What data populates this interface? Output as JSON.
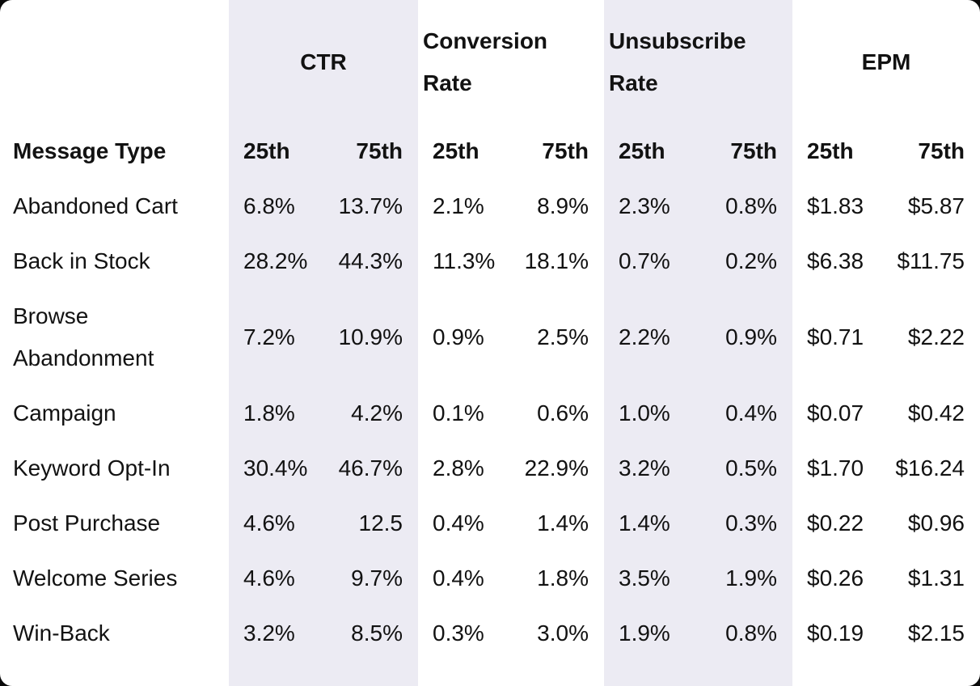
{
  "card": {
    "background": "#ffffff",
    "corner_backdrop_color": "#0a0a0a",
    "band_color": "#ECEBF3",
    "text_color": "#121212"
  },
  "table": {
    "row_header": "Message Type",
    "sub_headers": [
      "25th",
      "75th"
    ],
    "groups": [
      {
        "label": "CTR",
        "shaded": true
      },
      {
        "label": "Conversion Rate",
        "shaded": false
      },
      {
        "label": "Unsubscribe Rate",
        "shaded": true
      },
      {
        "label": "EPM",
        "shaded": false
      }
    ],
    "rows": [
      {
        "label": "Abandoned Cart",
        "values": [
          "6.8%",
          "13.7%",
          "2.1%",
          "8.9%",
          "2.3%",
          "0.8%",
          "$1.83",
          "$5.87"
        ]
      },
      {
        "label": "Back in Stock",
        "values": [
          "28.2%",
          "44.3%",
          "11.3%",
          "18.1%",
          "0.7%",
          "0.2%",
          "$6.38",
          "$11.75"
        ]
      },
      {
        "label": "Browse Abandonment",
        "values": [
          "7.2%",
          "10.9%",
          "0.9%",
          "2.5%",
          "2.2%",
          "0.9%",
          "$0.71",
          "$2.22"
        ]
      },
      {
        "label": "Campaign",
        "values": [
          "1.8%",
          "4.2%",
          "0.1%",
          "0.6%",
          "1.0%",
          "0.4%",
          "$0.07",
          "$0.42"
        ]
      },
      {
        "label": "Keyword Opt-In",
        "values": [
          "30.4%",
          "46.7%",
          "2.8%",
          "22.9%",
          "3.2%",
          "0.5%",
          "$1.70",
          "$16.24"
        ]
      },
      {
        "label": "Post Purchase",
        "values": [
          "4.6%",
          "12.5",
          "0.4%",
          "1.4%",
          "1.4%",
          "0.3%",
          "$0.22",
          "$0.96"
        ]
      },
      {
        "label": "Welcome Series",
        "values": [
          "4.6%",
          "9.7%",
          "0.4%",
          "1.8%",
          "3.5%",
          "1.9%",
          "$0.26",
          "$1.31"
        ]
      },
      {
        "label": "Win-Back",
        "values": [
          "3.2%",
          "8.5%",
          "0.3%",
          "3.0%",
          "1.9%",
          "0.8%",
          "$0.19",
          "$2.15"
        ]
      }
    ]
  },
  "chart_data": {
    "type": "table",
    "title": "",
    "column_groups": [
      "CTR",
      "Conversion Rate",
      "Unsubscribe Rate",
      "EPM"
    ],
    "columns": [
      "Message Type",
      "CTR 25th",
      "CTR 75th",
      "Conversion Rate 25th",
      "Conversion Rate 75th",
      "Unsubscribe Rate 25th",
      "Unsubscribe Rate 75th",
      "EPM 25th",
      "EPM 75th"
    ],
    "rows": [
      [
        "Abandoned Cart",
        "6.8%",
        "13.7%",
        "2.1%",
        "8.9%",
        "2.3%",
        "0.8%",
        "$1.83",
        "$5.87"
      ],
      [
        "Back in Stock",
        "28.2%",
        "44.3%",
        "11.3%",
        "18.1%",
        "0.7%",
        "0.2%",
        "$6.38",
        "$11.75"
      ],
      [
        "Browse Abandonment",
        "7.2%",
        "10.9%",
        "0.9%",
        "2.5%",
        "2.2%",
        "0.9%",
        "$0.71",
        "$2.22"
      ],
      [
        "Campaign",
        "1.8%",
        "4.2%",
        "0.1%",
        "0.6%",
        "1.0%",
        "0.4%",
        "$0.07",
        "$0.42"
      ],
      [
        "Keyword Opt-In",
        "30.4%",
        "46.7%",
        "2.8%",
        "22.9%",
        "3.2%",
        "0.5%",
        "$1.70",
        "$16.24"
      ],
      [
        "Post Purchase",
        "4.6%",
        "12.5",
        "0.4%",
        "1.4%",
        "1.4%",
        "0.3%",
        "$0.22",
        "$0.96"
      ],
      [
        "Welcome Series",
        "4.6%",
        "9.7%",
        "0.4%",
        "1.8%",
        "3.5%",
        "1.9%",
        "$0.26",
        "$1.31"
      ],
      [
        "Win-Back",
        "3.2%",
        "8.5%",
        "0.3%",
        "3.0%",
        "1.9%",
        "0.8%",
        "$0.19",
        "$2.15"
      ]
    ],
    "layout": {
      "shaded_column_groups": [
        "CTR",
        "Unsubscribe Rate"
      ],
      "shade_color": "#ECEBF3",
      "percentile_alignment": {
        "25th": "left",
        "75th": "right"
      }
    }
  }
}
